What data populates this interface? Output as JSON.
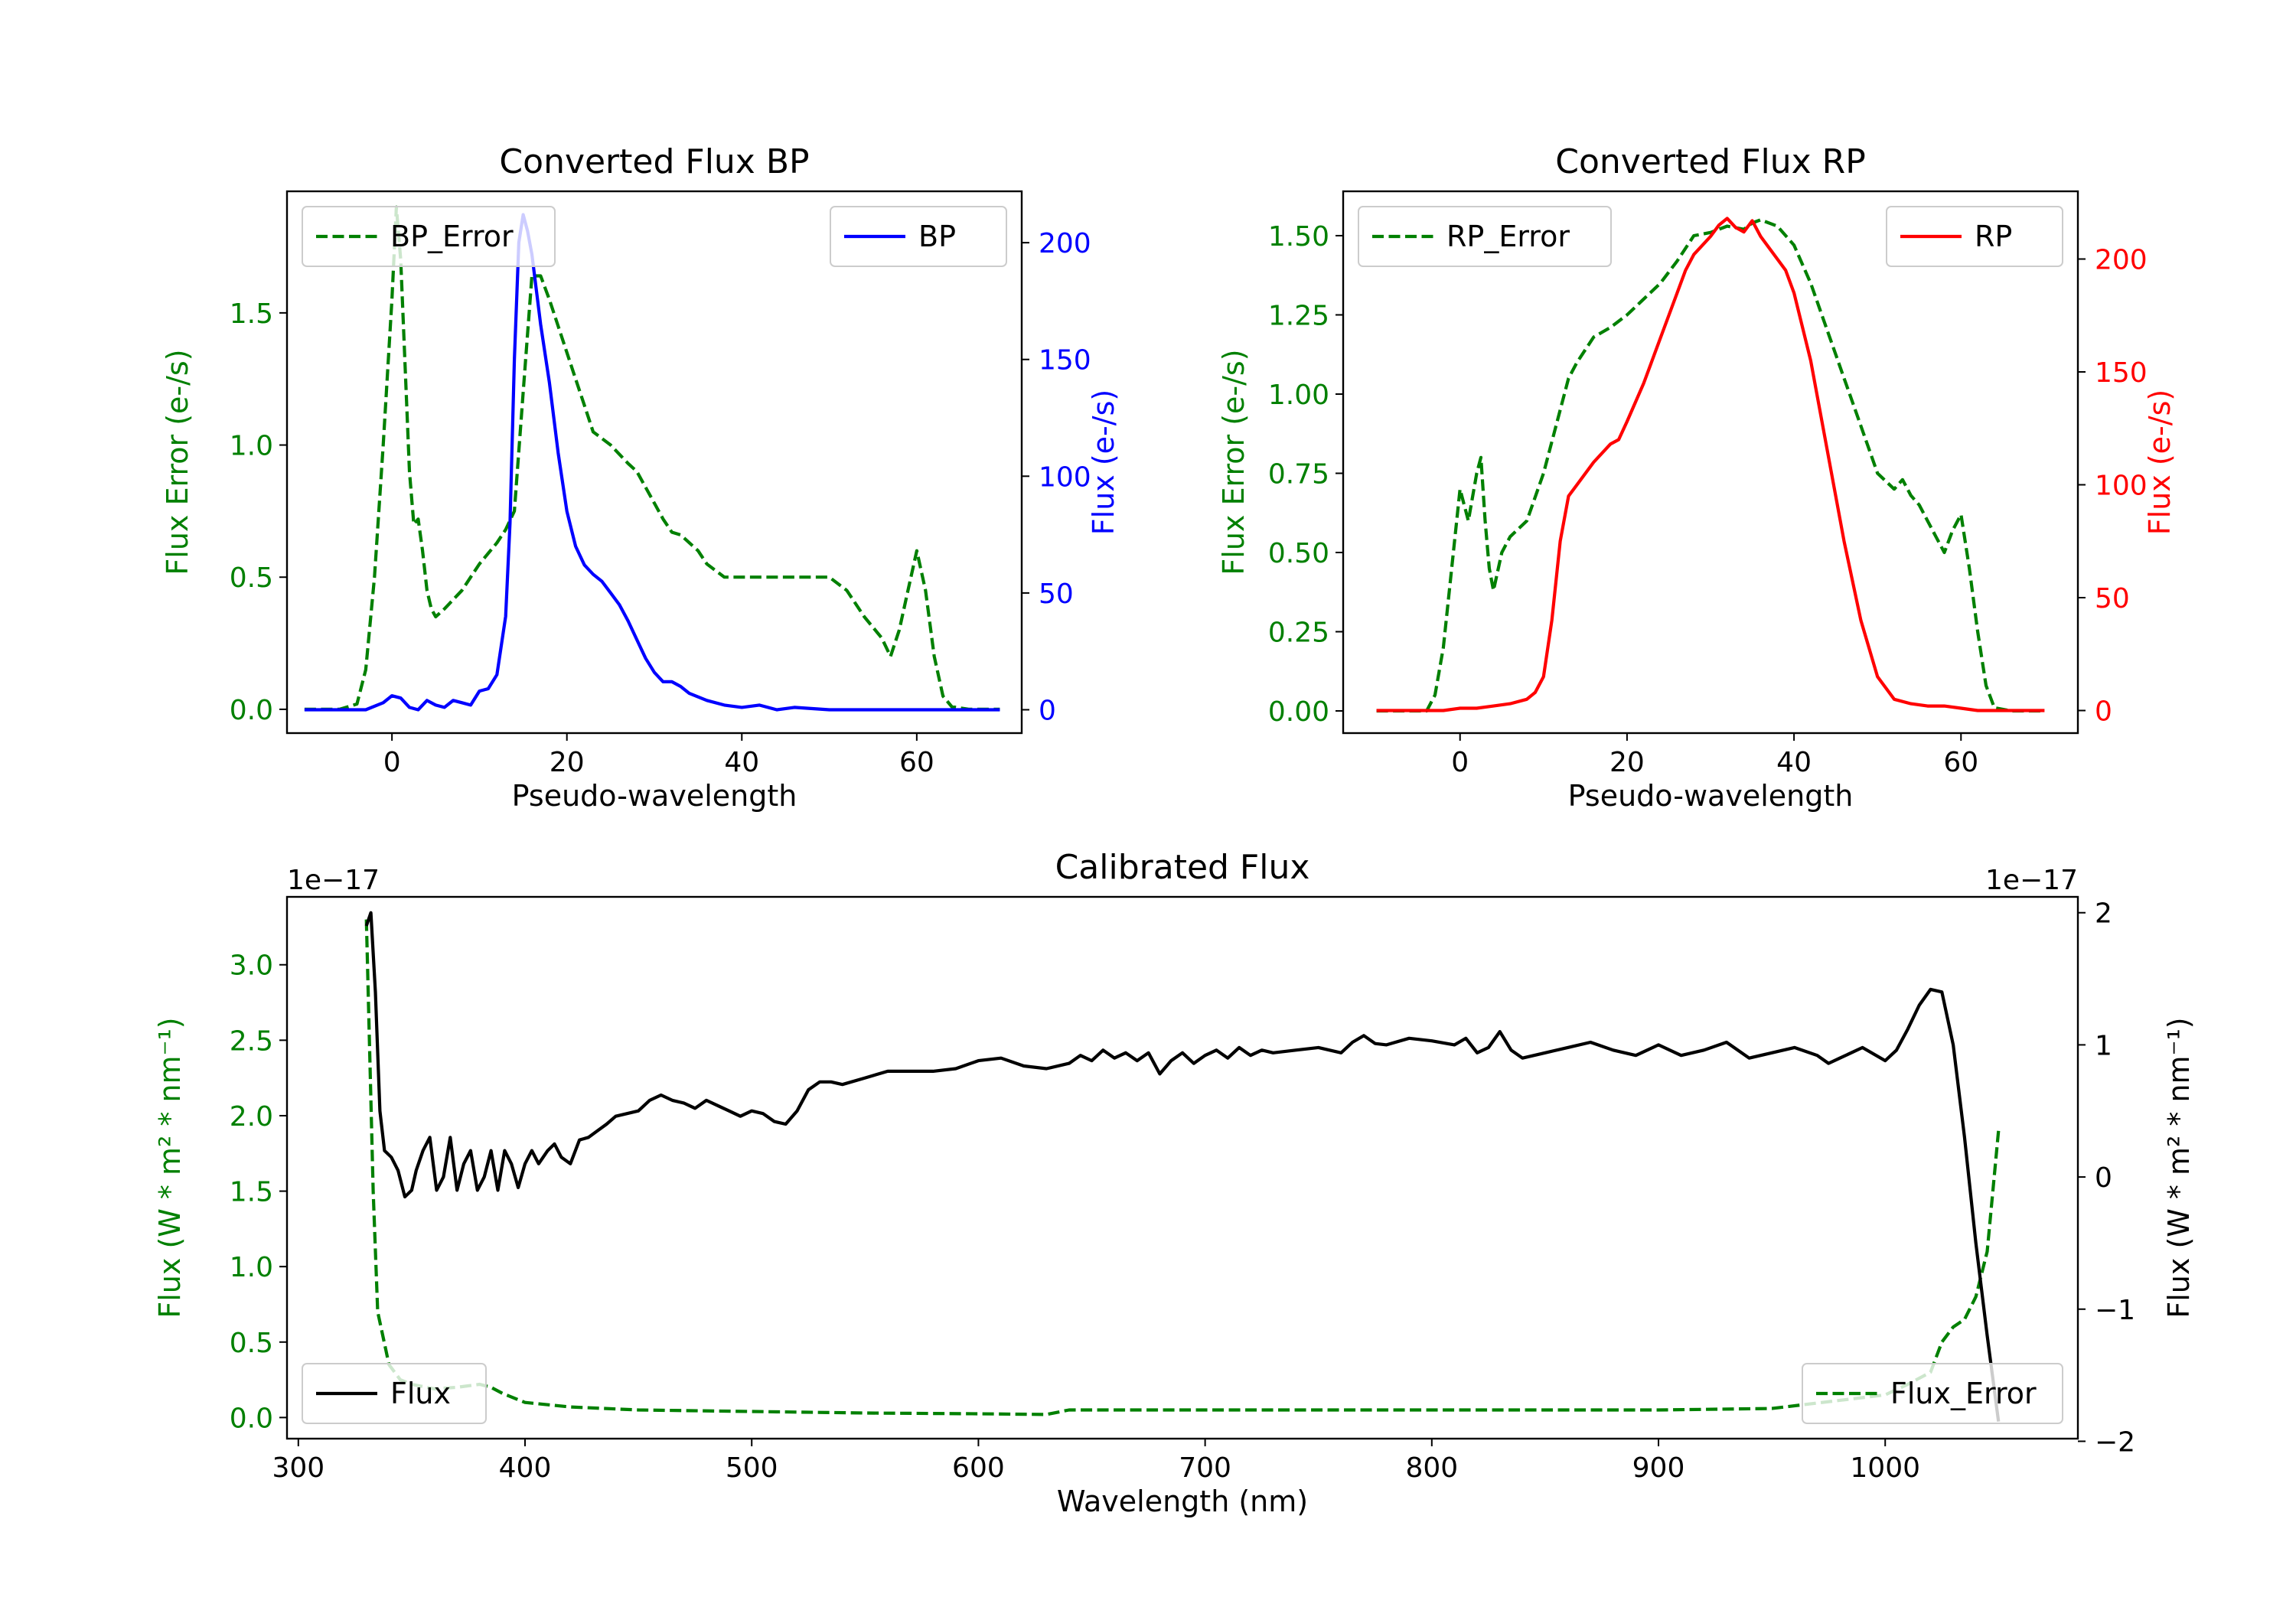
{
  "chart_data": [
    {
      "type": "line",
      "title": "Converted Flux BP",
      "xlabel": "Pseudo-wavelength",
      "xlim": [
        -12,
        72
      ],
      "xticks": [
        0,
        20,
        40,
        60
      ],
      "y_left": {
        "label": "Flux Error (e-/s)",
        "color": "#008000",
        "lim": [
          -0.09,
          1.96
        ],
        "ticks": [
          0.0,
          0.5,
          1.0,
          1.5
        ],
        "tick_labels": [
          "0.0",
          "0.5",
          "1.0",
          "1.5"
        ]
      },
      "y_right": {
        "label": "Flux (e-/s)",
        "color": "#0000ff",
        "lim": [
          -10,
          222
        ],
        "ticks": [
          0,
          50,
          100,
          150,
          200
        ],
        "tick_labels": [
          "0",
          "50",
          "100",
          "150",
          "200"
        ]
      },
      "series": [
        {
          "name": "BP_Error",
          "axis": "left",
          "color": "#008000",
          "dash": true,
          "x": [
            -10,
            -6,
            -4,
            -3,
            -2,
            -1,
            0,
            0.5,
            1,
            1.5,
            2,
            2.5,
            3,
            3.5,
            4,
            4.5,
            5,
            6,
            8,
            9,
            10,
            12,
            13,
            14,
            15,
            16,
            17,
            18,
            19,
            20,
            21,
            22,
            23,
            25,
            27,
            28,
            30,
            31,
            32,
            33,
            34,
            35,
            36,
            38,
            40,
            42,
            44,
            46,
            48,
            50,
            52,
            54,
            56,
            57,
            58,
            59,
            60,
            61,
            62,
            63,
            64,
            66,
            68,
            69.5
          ],
          "y": [
            0.0,
            0.0,
            0.02,
            0.15,
            0.5,
            1.0,
            1.55,
            1.9,
            1.7,
            1.3,
            0.9,
            0.7,
            0.72,
            0.6,
            0.45,
            0.38,
            0.35,
            0.38,
            0.45,
            0.5,
            0.55,
            0.63,
            0.68,
            0.75,
            1.2,
            1.64,
            1.64,
            1.55,
            1.45,
            1.35,
            1.25,
            1.15,
            1.05,
            1.0,
            0.93,
            0.9,
            0.78,
            0.72,
            0.67,
            0.66,
            0.63,
            0.6,
            0.55,
            0.5,
            0.5,
            0.5,
            0.5,
            0.5,
            0.5,
            0.5,
            0.45,
            0.35,
            0.27,
            0.2,
            0.3,
            0.45,
            0.6,
            0.45,
            0.2,
            0.05,
            0.01,
            0.0,
            0.0,
            0.0
          ]
        },
        {
          "name": "BP",
          "axis": "right",
          "color": "#0000ff",
          "dash": false,
          "x": [
            -10,
            -6,
            -3,
            -1,
            0,
            1,
            2,
            3,
            4,
            5,
            6,
            7,
            8,
            9,
            10,
            11,
            12,
            13,
            13.5,
            14,
            14.5,
            15,
            15.5,
            16,
            16.5,
            17,
            18,
            19,
            20,
            21,
            22,
            23,
            24,
            25,
            26,
            27,
            28,
            29,
            30,
            31,
            32,
            33,
            34,
            36,
            38,
            40,
            42,
            44,
            46,
            50,
            55,
            60,
            65,
            69.5
          ],
          "y": [
            0,
            0,
            0,
            3,
            6,
            5,
            1,
            0,
            4,
            2,
            1,
            4,
            3,
            2,
            8,
            9,
            15,
            40,
            80,
            150,
            200,
            212,
            205,
            195,
            180,
            165,
            140,
            110,
            85,
            70,
            62,
            58,
            55,
            50,
            45,
            38,
            30,
            22,
            16,
            12,
            12,
            10,
            7,
            4,
            2,
            1,
            2,
            0,
            1,
            0,
            0,
            0,
            0,
            0
          ]
        }
      ],
      "legend": [
        "BP_Error",
        "BP"
      ]
    },
    {
      "type": "line",
      "title": "Converted Flux RP",
      "xlabel": "Pseudo-wavelength",
      "xlim": [
        -14,
        74
      ],
      "xticks": [
        0,
        20,
        40,
        60
      ],
      "y_left": {
        "label": "Flux Error (e-/s)",
        "color": "#008000",
        "lim": [
          -0.07,
          1.64
        ],
        "ticks": [
          0.0,
          0.25,
          0.5,
          0.75,
          1.0,
          1.25,
          1.5
        ],
        "tick_labels": [
          "0.00",
          "0.25",
          "0.50",
          "0.75",
          "1.00",
          "1.25",
          "1.50"
        ]
      },
      "y_right": {
        "label": "Flux (e-/s)",
        "color": "#ff0000",
        "lim": [
          -10,
          230
        ],
        "ticks": [
          0,
          50,
          100,
          150,
          200
        ],
        "tick_labels": [
          "0",
          "50",
          "100",
          "150",
          "200"
        ]
      },
      "series": [
        {
          "name": "RP_Error",
          "axis": "left",
          "color": "#008000",
          "dash": true,
          "x": [
            -10,
            -4,
            -3,
            -2,
            -1,
            0,
            1,
            2,
            2.5,
            3,
            3.5,
            4,
            5,
            6,
            8,
            10,
            12,
            13,
            14,
            16,
            18,
            20,
            22,
            24,
            26,
            28,
            30,
            32,
            34,
            35,
            36,
            38,
            40,
            42,
            44,
            46,
            48,
            50,
            52,
            53,
            54,
            55,
            56,
            57,
            58,
            59,
            60,
            61,
            62,
            63,
            64,
            66,
            70
          ],
          "y": [
            0.0,
            0.0,
            0.05,
            0.2,
            0.45,
            0.7,
            0.6,
            0.75,
            0.8,
            0.6,
            0.45,
            0.38,
            0.5,
            0.55,
            0.6,
            0.75,
            0.95,
            1.05,
            1.1,
            1.18,
            1.21,
            1.25,
            1.3,
            1.35,
            1.42,
            1.5,
            1.51,
            1.53,
            1.52,
            1.54,
            1.55,
            1.53,
            1.47,
            1.35,
            1.2,
            1.05,
            0.9,
            0.75,
            0.7,
            0.73,
            0.68,
            0.65,
            0.6,
            0.55,
            0.5,
            0.57,
            0.62,
            0.45,
            0.25,
            0.08,
            0.01,
            0.0,
            0.0
          ]
        },
        {
          "name": "RP",
          "axis": "right",
          "color": "#ff0000",
          "dash": false,
          "x": [
            -10,
            -2,
            0,
            2,
            4,
            6,
            8,
            9,
            10,
            11,
            12,
            13,
            14,
            16,
            18,
            19,
            20,
            22,
            24,
            26,
            27,
            28,
            29,
            30,
            31,
            32,
            33,
            34,
            35,
            36,
            37,
            38,
            39,
            40,
            42,
            44,
            46,
            48,
            50,
            52,
            54,
            56,
            58,
            60,
            62,
            65,
            70
          ],
          "y": [
            0,
            0,
            1,
            1,
            2,
            3,
            5,
            8,
            15,
            40,
            75,
            95,
            100,
            110,
            118,
            120,
            128,
            145,
            165,
            185,
            195,
            202,
            206,
            210,
            215,
            218,
            214,
            212,
            217,
            210,
            205,
            200,
            195,
            185,
            155,
            115,
            75,
            40,
            15,
            5,
            3,
            2,
            2,
            1,
            0,
            0,
            0
          ]
        }
      ],
      "legend": [
        "RP_Error",
        "RP"
      ]
    },
    {
      "type": "line",
      "title": "Calibrated Flux",
      "xlabel": "Wavelength (nm)",
      "xlim": [
        295,
        1085
      ],
      "xticks": [
        300,
        400,
        500,
        600,
        700,
        800,
        900,
        1000
      ],
      "y_left": {
        "label": "Flux (W * m² * nm⁻¹)",
        "color": "#008000",
        "lim": [
          -1.4e-18,
          3.45e-17
        ],
        "scale_label": "1e−17",
        "ticks": [
          0,
          5e-18,
          1e-17,
          1.5e-17,
          2e-17,
          2.5e-17,
          3e-17
        ],
        "tick_labels": [
          "0.0",
          "0.5",
          "1.0",
          "1.5",
          "2.0",
          "2.5",
          "3.0"
        ]
      },
      "y_right": {
        "label": "Flux (W * m² * nm⁻¹)",
        "color": "#000000",
        "lim": [
          -1.98e-17,
          2.12e-17
        ],
        "scale_label": "1e−17",
        "ticks": [
          -2e-17,
          -1e-17,
          0,
          1e-17,
          2e-17
        ],
        "tick_labels": [
          "−2",
          "−1",
          "0",
          "1",
          "2"
        ]
      },
      "series": [
        {
          "name": "Flux_Error",
          "axis": "left",
          "color": "#008000",
          "dash": true,
          "x": [
            330,
            333,
            335,
            340,
            345,
            350,
            360,
            370,
            380,
            385,
            390,
            400,
            420,
            450,
            500,
            550,
            600,
            630,
            640,
            650,
            700,
            800,
            900,
            950,
            1000,
            1010,
            1020,
            1025,
            1030,
            1035,
            1040,
            1045,
            1050
          ],
          "y": [
            3.3e-17,
            1.5e-17,
            7e-18,
            3.5e-18,
            2.5e-18,
            2.2e-18,
            1.9e-18,
            2e-18,
            2.2e-18,
            2e-18,
            1.6e-18,
            1e-18,
            7e-19,
            5e-19,
            4e-19,
            3e-19,
            2.5e-19,
            2e-19,
            5e-19,
            5e-19,
            5e-19,
            5e-19,
            5e-19,
            6e-19,
            1.5e-18,
            2.2e-18,
            3e-18,
            5e-18,
            6e-18,
            6.5e-18,
            8e-18,
            1.1e-17,
            1.9e-17
          ]
        },
        {
          "name": "Flux",
          "axis": "right",
          "color": "#000000",
          "dash": false,
          "x": [
            330,
            332,
            334,
            336,
            338,
            341,
            344,
            347,
            350,
            352,
            355,
            358,
            361,
            364,
            367,
            370,
            373,
            376,
            379,
            382,
            385,
            388,
            391,
            394,
            397,
            400,
            403,
            406,
            410,
            413,
            416,
            420,
            424,
            428,
            432,
            436,
            440,
            445,
            450,
            455,
            460,
            465,
            470,
            475,
            480,
            485,
            490,
            495,
            500,
            505,
            510,
            515,
            520,
            525,
            530,
            535,
            540,
            550,
            560,
            570,
            580,
            590,
            600,
            610,
            620,
            630,
            640,
            645,
            650,
            655,
            660,
            665,
            670,
            675,
            680,
            685,
            690,
            695,
            700,
            705,
            710,
            715,
            720,
            725,
            730,
            740,
            750,
            760,
            765,
            770,
            775,
            780,
            790,
            800,
            810,
            815,
            820,
            825,
            830,
            835,
            840,
            850,
            860,
            870,
            880,
            890,
            900,
            910,
            920,
            930,
            940,
            950,
            960,
            970,
            975,
            980,
            990,
            1000,
            1005,
            1010,
            1015,
            1020,
            1025,
            1030,
            1035,
            1040,
            1045,
            1050
          ],
          "y": [
            1.9e-17,
            2e-17,
            1.4e-17,
            5e-18,
            2e-18,
            1.5e-18,
            5e-19,
            -1.5e-18,
            -1e-18,
            5e-19,
            2e-18,
            3e-18,
            -1e-18,
            0,
            3e-18,
            -1e-18,
            1e-18,
            2e-18,
            -1e-18,
            0,
            2e-18,
            -1e-18,
            2e-18,
            1e-18,
            -8e-19,
            1e-18,
            2e-18,
            1e-18,
            2e-18,
            2.5e-18,
            1.5e-18,
            1e-18,
            2.8e-18,
            3e-18,
            3.5e-18,
            4e-18,
            4.6e-18,
            4.8e-18,
            5e-18,
            5.8e-18,
            6.2e-18,
            5.8e-18,
            5.6e-18,
            5.2e-18,
            5.8e-18,
            5.4e-18,
            5e-18,
            4.6e-18,
            5e-18,
            4.8e-18,
            4.2e-18,
            4e-18,
            5e-18,
            6.6e-18,
            7.2e-18,
            7.2e-18,
            7e-18,
            7.5e-18,
            8e-18,
            8e-18,
            8e-18,
            8.2e-18,
            8.8e-18,
            9e-18,
            8.4e-18,
            8.2e-18,
            8.6e-18,
            9.2e-18,
            8.8e-18,
            9.6e-18,
            9e-18,
            9.4e-18,
            8.8e-18,
            9.4e-18,
            7.8e-18,
            8.8e-18,
            9.4e-18,
            8.6e-18,
            9.2e-18,
            9.6e-18,
            9e-18,
            9.8e-18,
            9.2e-18,
            9.6e-18,
            9.4e-18,
            9.6e-18,
            9.8e-18,
            9.4e-18,
            1.02e-17,
            1.07e-17,
            1.01e-17,
            1e-17,
            1.05e-17,
            1.03e-17,
            1e-17,
            1.05e-17,
            9.4e-18,
            9.8e-18,
            1.1e-17,
            9.6e-18,
            9e-18,
            9.4e-18,
            9.8e-18,
            1.02e-17,
            9.6e-18,
            9.2e-18,
            1e-17,
            9.2e-18,
            9.6e-18,
            1.02e-17,
            9e-18,
            9.4e-18,
            9.8e-18,
            9.2e-18,
            8.6e-18,
            9e-18,
            9.8e-18,
            8.8e-18,
            9.6e-18,
            1.12e-17,
            1.3e-17,
            1.42e-17,
            1.4e-17,
            1e-17,
            3e-18,
            -5e-18,
            -1.2e-17,
            -1.85e-17
          ]
        }
      ],
      "legend": [
        "Flux",
        "Flux_Error"
      ]
    }
  ]
}
